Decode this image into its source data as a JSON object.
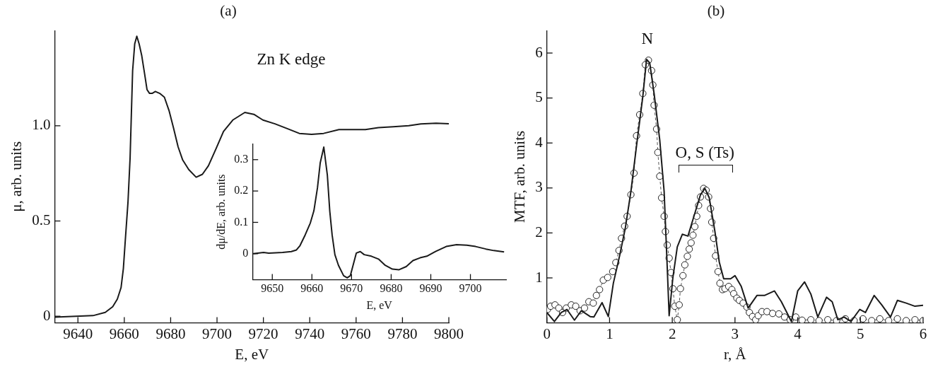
{
  "chart_data": [
    {
      "type": "line",
      "title": "(a)",
      "xlabel": "E, eV",
      "ylabel": "μ, arb. units",
      "color": "#1a1a1a",
      "annotations": [
        "Zn K edge"
      ],
      "x": [
        9630,
        9646.5,
        9651.8,
        9655,
        9657,
        9658.6,
        9659.6,
        9660.5,
        9661.6,
        9662.5,
        9663.6,
        9664.5,
        9665.4,
        9666.4,
        9667.5,
        9668.8,
        9669.8,
        9670.9,
        9672,
        9673.4,
        9675.3,
        9677.3,
        9679.3,
        9681.2,
        9683.2,
        9685.2,
        9687.8,
        9691,
        9693.7,
        9696.3,
        9699.6,
        9702.8,
        9706.8,
        9712,
        9715.9,
        9719.8,
        9725,
        9730.3,
        9735.5,
        9740.8,
        9746,
        9752.6,
        9759,
        9764,
        9769.6,
        9776,
        9782.7,
        9787.9,
        9794.5,
        9800
      ],
      "values": [
        -0.005,
        0.003,
        0.02,
        0.05,
        0.09,
        0.15,
        0.25,
        0.41,
        0.6,
        0.83,
        1.29,
        1.43,
        1.47,
        1.43,
        1.37,
        1.27,
        1.19,
        1.17,
        1.17,
        1.18,
        1.17,
        1.15,
        1.08,
        0.99,
        0.89,
        0.82,
        0.77,
        0.73,
        0.745,
        0.79,
        0.88,
        0.97,
        1.03,
        1.07,
        1.06,
        1.03,
        1.01,
        0.985,
        0.96,
        0.955,
        0.96,
        0.98,
        0.98,
        0.98,
        0.99,
        0.995,
        1.0,
        1.01,
        1.013,
        1.011
      ],
      "xlim": [
        9630,
        9800
      ],
      "xticks": [
        9640,
        9660,
        9680,
        9700,
        9720,
        9740,
        9760,
        9780,
        9800
      ],
      "ylim": [
        -0.035,
        1.5
      ],
      "yticks": [
        0,
        0.5,
        {
          "value": 1,
          "label": "1.0"
        }
      ],
      "grid": false
    },
    {
      "type": "line",
      "xlabel": "E, eV",
      "ylabel": "dμ/dE, arb. units",
      "color": "#1a1a1a",
      "x": [
        9645.2,
        9647.8,
        9649.1,
        9652.6,
        9654.8,
        9656.1,
        9657,
        9658.3,
        9659.6,
        9660.5,
        9661.4,
        9662.1,
        9663,
        9663.9,
        9664.5,
        9665.1,
        9665.8,
        9666.7,
        9668,
        9668.9,
        9669.7,
        9671.2,
        9672.2,
        9673.2,
        9675,
        9676.8,
        9678.5,
        9680.3,
        9682,
        9683.8,
        9685.5,
        9687.3,
        9689,
        9691.2,
        9693.9,
        9696.5,
        9699.1,
        9701.3,
        9703.9,
        9705.9,
        9708.5
      ],
      "values": [
        0,
        0.004,
        0.002,
        0.004,
        0.007,
        0.012,
        0.026,
        0.06,
        0.098,
        0.137,
        0.21,
        0.29,
        0.34,
        0.25,
        0.137,
        0.06,
        -0.003,
        -0.037,
        -0.07,
        -0.077,
        -0.07,
        0.002,
        0.007,
        -0.003,
        -0.008,
        -0.017,
        -0.037,
        -0.049,
        -0.051,
        -0.041,
        -0.022,
        -0.013,
        -0.008,
        0.007,
        0.023,
        0.029,
        0.027,
        0.023,
        0.015,
        0.01,
        0.006
      ],
      "xlim": [
        9645,
        9709
      ],
      "xticks": [
        9650,
        9660,
        9670,
        9680,
        9690,
        9700
      ],
      "ylim": [
        -0.083,
        0.35
      ],
      "yticks": [
        0,
        0.1,
        0.2,
        0.3
      ],
      "grid": false
    },
    {
      "type": "line",
      "title": "(b)",
      "xlabel": "r, Å",
      "ylabel": "MTF, arb. units",
      "annotations": [
        "N",
        "O, S (Ts)"
      ],
      "series": [
        {
          "color": "#1a1a1a",
          "marker": "none",
          "line_style": "solid",
          "x": [
            0,
            0.12,
            0.23,
            0.32,
            0.44,
            0.55,
            0.69,
            0.75,
            0.88,
            0.98,
            1.06,
            1.16,
            1.25,
            1.34,
            1.43,
            1.53,
            1.59,
            1.64,
            1.71,
            1.8,
            1.87,
            1.92,
            1.95,
            2.01,
            2.08,
            2.16,
            2.25,
            2.36,
            2.45,
            2.52,
            2.59,
            2.68,
            2.75,
            2.82,
            2.93,
            3.0,
            3.1,
            3.21,
            3.35,
            3.47,
            3.63,
            3.74,
            3.9,
            4.0,
            4.11,
            4.21,
            4.32,
            4.46,
            4.55,
            4.64,
            4.74,
            4.85,
            4.99,
            5.08,
            5.22,
            5.34,
            5.48,
            5.59,
            5.73,
            5.87,
            6.0
          ],
          "values": [
            0.23,
            0.03,
            0.23,
            0.3,
            0.06,
            0.27,
            0.14,
            0.13,
            0.45,
            0.14,
            0.88,
            1.49,
            2.1,
            2.92,
            3.94,
            5.03,
            5.86,
            5.78,
            5.1,
            4.07,
            2.92,
            1.22,
            0.16,
            1.01,
            1.69,
            1.97,
            1.93,
            2.44,
            2.85,
            2.99,
            2.78,
            2.03,
            1.35,
            0.98,
            0.98,
            1.05,
            0.81,
            0.33,
            0.61,
            0.61,
            0.71,
            0.47,
            0.03,
            0.71,
            0.91,
            0.64,
            0.13,
            0.57,
            0.47,
            0.07,
            0.13,
            0.03,
            0.3,
            0.23,
            0.61,
            0.4,
            0.13,
            0.5,
            0.44,
            0.37,
            0.39
          ]
        },
        {
          "color": "#555555",
          "marker": "circle",
          "line_style": "dashed",
          "x": [
            0.01,
            0.06,
            0.13,
            0.19,
            0.25,
            0.31,
            0.39,
            0.46,
            0.53,
            0.6,
            0.67,
            0.74,
            0.79,
            0.84,
            0.9,
            0.97,
            1.05,
            1.1,
            1.15,
            1.19,
            1.24,
            1.28,
            1.34,
            1.39,
            1.43,
            1.48,
            1.53,
            1.57,
            1.62,
            1.67,
            1.69,
            1.71,
            1.75,
            1.77,
            1.8,
            1.83,
            1.87,
            1.89,
            1.92,
            1.95,
            1.98,
            2.01,
            2.04,
            2.08,
            2.11,
            2.13,
            2.17,
            2.2,
            2.24,
            2.27,
            2.3,
            2.33,
            2.36,
            2.39,
            2.42,
            2.45,
            2.5,
            2.54,
            2.58,
            2.61,
            2.63,
            2.66,
            2.69,
            2.73,
            2.76,
            2.8,
            2.84,
            2.9,
            2.95,
            2.98,
            3.03,
            3.07,
            3.13,
            3.19,
            3.23,
            3.28,
            3.33,
            3.37,
            3.43,
            3.51,
            3.6,
            3.7,
            3.79,
            3.88,
            3.97,
            4.07,
            4.21,
            4.34,
            4.48,
            4.62,
            4.76,
            4.9,
            5.04,
            5.18,
            5.31,
            5.45,
            5.59,
            5.73,
            5.87,
            6.0
          ],
          "values": [
            0.3,
            0.37,
            0.4,
            0.33,
            0.23,
            0.33,
            0.4,
            0.37,
            0.27,
            0.33,
            0.47,
            0.44,
            0.61,
            0.74,
            0.95,
            1.01,
            1.14,
            1.34,
            1.61,
            1.88,
            2.15,
            2.37,
            2.85,
            3.33,
            4.16,
            4.63,
            5.1,
            5.74,
            5.84,
            5.61,
            5.29,
            4.84,
            4.31,
            3.79,
            3.26,
            2.78,
            2.37,
            2.03,
            1.73,
            1.44,
            1.12,
            0.76,
            0.37,
            0.07,
            0.4,
            0.76,
            1.05,
            1.29,
            1.48,
            1.64,
            1.78,
            1.95,
            2.14,
            2.37,
            2.61,
            2.8,
            2.99,
            2.95,
            2.8,
            2.54,
            2.24,
            1.88,
            1.49,
            1.14,
            0.88,
            0.74,
            0.76,
            0.81,
            0.74,
            0.65,
            0.55,
            0.5,
            0.44,
            0.35,
            0.23,
            0.14,
            0.07,
            0.16,
            0.25,
            0.25,
            0.21,
            0.2,
            0.13,
            0.07,
            0.13,
            0.06,
            0.07,
            0.05,
            0.07,
            0.05,
            0.09,
            0.05,
            0.09,
            0.05,
            0.09,
            0.05,
            0.09,
            0.05,
            0.07,
            0.05
          ]
        }
      ],
      "xlim": [
        0,
        6
      ],
      "xticks": [
        0,
        1,
        2,
        3,
        4,
        5,
        6
      ],
      "ylim": [
        0,
        6.5
      ],
      "yticks": [
        1,
        2,
        3,
        4,
        5,
        6
      ],
      "grid": false
    }
  ]
}
